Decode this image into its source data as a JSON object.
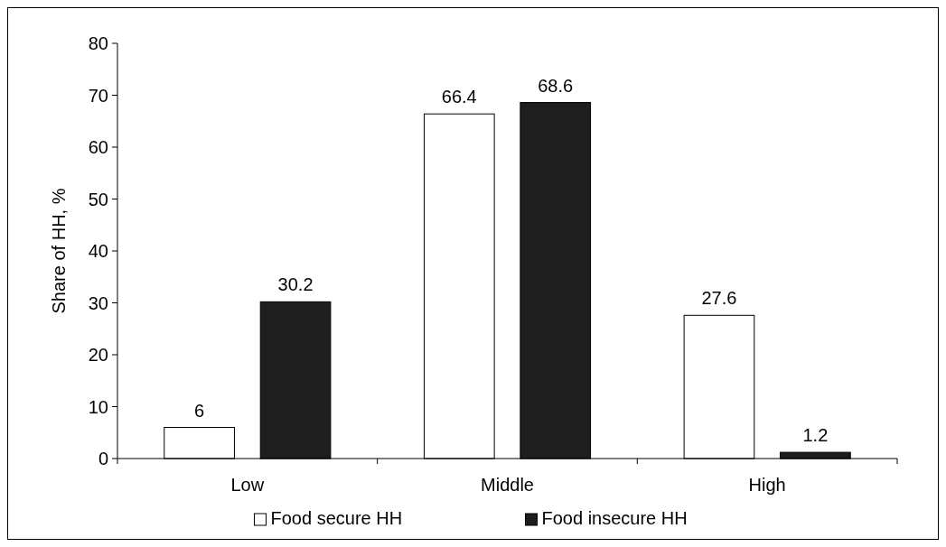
{
  "chart_data": {
    "type": "bar",
    "ylabel": "Share of HH, %",
    "categories": [
      "Low",
      "Middle",
      "High"
    ],
    "series": [
      {
        "name": "Food secure HH",
        "color": "#ffffff",
        "values": [
          6,
          66.4,
          27.6
        ]
      },
      {
        "name": "Food insecure HH",
        "color": "#1e1e1e",
        "values": [
          30.2,
          68.6,
          1.2
        ]
      }
    ],
    "ylim": [
      0,
      80
    ],
    "yticks": [
      0,
      10,
      20,
      30,
      40,
      50,
      60,
      70,
      80
    ],
    "data_labels": true,
    "legend": "bottom",
    "grid": false
  }
}
